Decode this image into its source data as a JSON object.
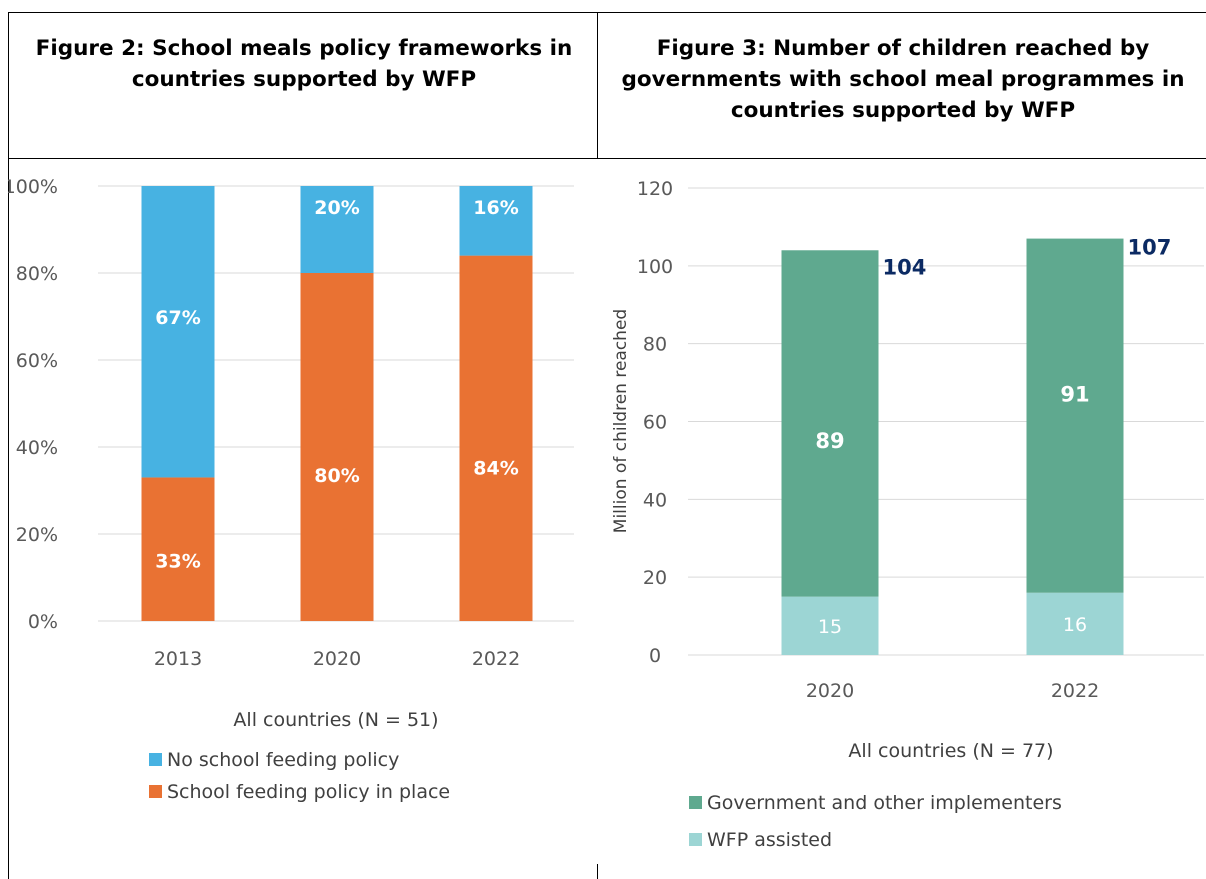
{
  "colors": {
    "no_policy": "#47b2e2",
    "policy_in_place": "#e97233",
    "government": "#5fa98f",
    "wfp_assisted": "#9cd5d4",
    "total_label": "#0b2a63",
    "gridline": "#d9d9d9",
    "axis_text": "#595959"
  },
  "chart_data": [
    {
      "type": "bar",
      "stacked": true,
      "title": "Figure 2: School meals policy frameworks in countries supported by WFP",
      "categories": [
        "2013",
        "2020",
        "2022"
      ],
      "series": [
        {
          "name": "School feeding policy in place",
          "values": [
            33,
            80,
            84
          ],
          "labels": [
            "33%",
            "80%",
            "84%"
          ]
        },
        {
          "name": "No school feeding policy",
          "values": [
            67,
            20,
            16
          ],
          "labels": [
            "67%",
            "20%",
            "16%"
          ]
        }
      ],
      "ylim": [
        0,
        100
      ],
      "yticks": [
        "0%",
        "20%",
        "40%",
        "60%",
        "80%",
        "100%"
      ],
      "xlabel": "All countries (N = 51)",
      "ylabel": "",
      "grid": true,
      "legend_position": "bottom",
      "legend": [
        "No school feeding policy",
        "School feeding policy in place"
      ]
    },
    {
      "type": "bar",
      "stacked": true,
      "title": "Figure 3: Number of children reached by governments with school meal programmes in countries supported by WFP",
      "categories": [
        "2020",
        "2022"
      ],
      "series": [
        {
          "name": "WFP assisted",
          "values": [
            15,
            16
          ],
          "labels": [
            "15",
            "16"
          ]
        },
        {
          "name": "Government and other implementers",
          "values": [
            89,
            91
          ],
          "labels": [
            "89",
            "91"
          ]
        }
      ],
      "totals": [
        104,
        107
      ],
      "total_labels": [
        "104",
        "107"
      ],
      "ylim": [
        0,
        120
      ],
      "yticks": [
        "0",
        "20",
        "40",
        "60",
        "80",
        "100",
        "120"
      ],
      "xlabel": "All countries (N = 77)",
      "ylabel": "Million of children reached",
      "grid": true,
      "legend_position": "bottom",
      "legend": [
        "Government and other implementers",
        "WFP assisted"
      ]
    }
  ]
}
